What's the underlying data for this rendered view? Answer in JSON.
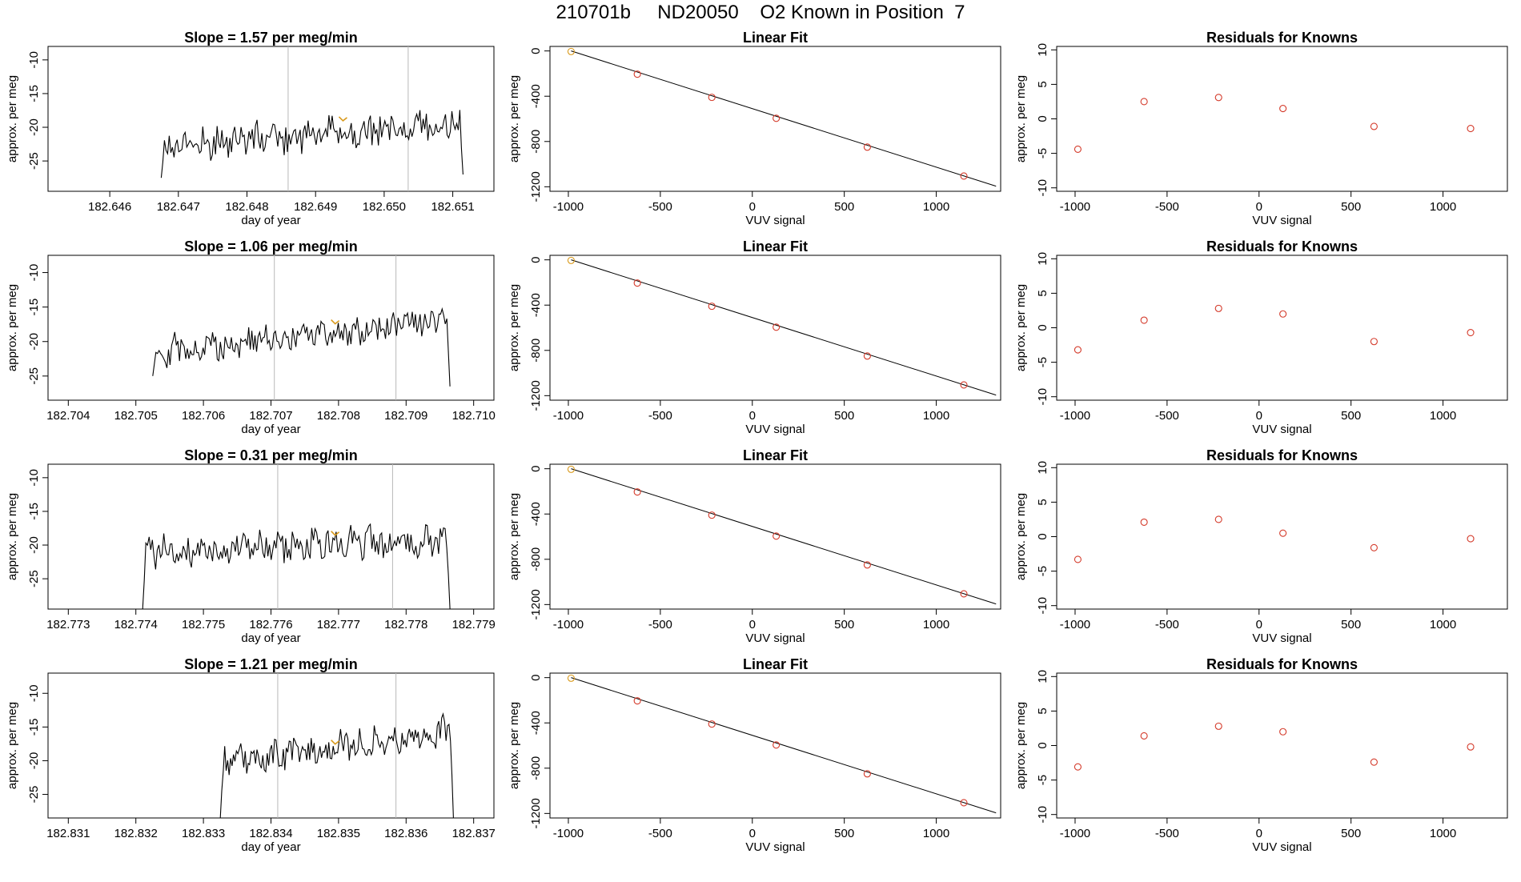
{
  "figure": {
    "title": "210701b     ND20050    O2 Known in Position  7"
  },
  "colors": {
    "trace": "#000000",
    "marker_gold": "#d99a1c",
    "marker_red": "#d43a2a",
    "vline": "#b8b8b8"
  },
  "chart_data": [
    {
      "type": "line",
      "title": "Slope =  1.57  per meg/min",
      "xlabel": "day of year",
      "ylabel": "approx. per meg",
      "xlim": [
        182.6451,
        182.6516
      ],
      "ylim": [
        -29.5,
        -8.0
      ],
      "xticks": [
        182.646,
        182.647,
        182.648,
        182.649,
        182.65,
        182.651
      ],
      "xtick_labels": [
        "182.646",
        "182.647",
        "182.648",
        "182.649",
        "182.650",
        "182.651"
      ],
      "yticks": [
        -25,
        -20,
        -15,
        -10
      ],
      "ytick_labels": [
        "-25",
        "-20",
        "-15",
        "-10"
      ],
      "trace": {
        "x_start": 182.64675,
        "x_end": 182.65115,
        "seed": 17,
        "base_start": -22.8,
        "base_end": -19.2,
        "noise": 2.2,
        "points": 190,
        "y_first": -27.5,
        "y_last": -27.0
      },
      "vlines": [
        182.6486,
        182.65035
      ],
      "marker": {
        "x": 182.6494,
        "y": -18.8
      }
    },
    {
      "type": "scatter",
      "title": "Linear Fit",
      "xlabel": "VUV signal",
      "ylabel": "approx. per meg",
      "xlim": [
        -1100,
        1350
      ],
      "ylim": [
        -1240,
        40
      ],
      "xticks": [
        -1000,
        -500,
        0,
        500,
        1000
      ],
      "xtick_labels": [
        "-1000",
        "-500",
        "0",
        "500",
        "1000"
      ],
      "yticks": [
        -1200,
        -800,
        -400,
        0
      ],
      "ytick_labels": [
        "-1200",
        "-800",
        "-400",
        "0"
      ],
      "points": {
        "x": [
          -985,
          -625,
          -220,
          130,
          625,
          1150
        ],
        "y": [
          -5,
          -205,
          -410,
          -595,
          -850,
          -1105
        ]
      },
      "fit_line": {
        "x": [
          -985,
          1325
        ],
        "y": [
          0,
          -1195
        ]
      }
    },
    {
      "type": "scatter",
      "title": "Residuals for Knowns",
      "xlabel": "VUV signal",
      "ylabel": "approx. per meg",
      "xlim": [
        -1100,
        1350
      ],
      "ylim": [
        -10.5,
        10.5
      ],
      "xticks": [
        -1000,
        -500,
        0,
        500,
        1000
      ],
      "xtick_labels": [
        "-1000",
        "-500",
        "0",
        "500",
        "1000"
      ],
      "yticks": [
        -10,
        -5,
        0,
        5,
        10
      ],
      "ytick_labels": [
        "-10",
        "-5",
        "0",
        "5",
        "10"
      ],
      "points": {
        "x": [
          -985,
          -625,
          -220,
          130,
          625,
          1150
        ],
        "y": [
          -4.4,
          2.5,
          3.1,
          1.5,
          -1.1,
          -1.4
        ]
      }
    },
    {
      "type": "line",
      "title": "Slope =  1.06  per meg/min",
      "xlabel": "day of year",
      "ylabel": "approx. per meg",
      "xlim": [
        182.7037,
        182.7103
      ],
      "ylim": [
        -28.5,
        -7.5
      ],
      "xticks": [
        182.704,
        182.705,
        182.706,
        182.707,
        182.708,
        182.709,
        182.71
      ],
      "xtick_labels": [
        "182.704",
        "182.705",
        "182.706",
        "182.707",
        "182.708",
        "182.709",
        "182.710"
      ],
      "yticks": [
        -25,
        -20,
        -15,
        -10
      ],
      "ytick_labels": [
        "-25",
        "-20",
        "-15",
        "-10"
      ],
      "trace": {
        "x_start": 182.70525,
        "x_end": 182.70965,
        "seed": 29,
        "base_start": -21.5,
        "base_end": -17.0,
        "noise": 2.0,
        "points": 190,
        "y_first": -25.0,
        "y_last": -26.5
      },
      "vlines": [
        182.70705,
        182.70885
      ],
      "marker": {
        "x": 182.70795,
        "y": -17.2
      }
    },
    {
      "type": "scatter",
      "title": "Linear Fit",
      "xlabel": "VUV signal",
      "ylabel": "approx. per meg",
      "xlim": [
        -1100,
        1350
      ],
      "ylim": [
        -1240,
        40
      ],
      "xticks": [
        -1000,
        -500,
        0,
        500,
        1000
      ],
      "xtick_labels": [
        "-1000",
        "-500",
        "0",
        "500",
        "1000"
      ],
      "yticks": [
        -1200,
        -800,
        -400,
        0
      ],
      "ytick_labels": [
        "-1200",
        "-800",
        "-400",
        "0"
      ],
      "points": {
        "x": [
          -985,
          -625,
          -220,
          130,
          625,
          1150
        ],
        "y": [
          -5,
          -205,
          -410,
          -595,
          -850,
          -1105
        ]
      },
      "fit_line": {
        "x": [
          -985,
          1325
        ],
        "y": [
          0,
          -1195
        ]
      }
    },
    {
      "type": "scatter",
      "title": "Residuals for Knowns",
      "xlabel": "VUV signal",
      "ylabel": "approx. per meg",
      "xlim": [
        -1100,
        1350
      ],
      "ylim": [
        -10.5,
        10.5
      ],
      "xticks": [
        -1000,
        -500,
        0,
        500,
        1000
      ],
      "xtick_labels": [
        "-1000",
        "-500",
        "0",
        "500",
        "1000"
      ],
      "yticks": [
        -10,
        -5,
        0,
        5,
        10
      ],
      "ytick_labels": [
        "-10",
        "-5",
        "0",
        "5",
        "10"
      ],
      "points": {
        "x": [
          -985,
          -625,
          -220,
          130,
          625,
          1150
        ],
        "y": [
          -3.2,
          1.1,
          2.8,
          2.0,
          -2.0,
          -0.7
        ]
      }
    },
    {
      "type": "line",
      "title": "Slope =  0.31  per meg/min",
      "xlabel": "day of year",
      "ylabel": "approx. per meg",
      "xlim": [
        182.7727,
        182.7793
      ],
      "ylim": [
        -29.5,
        -8.0
      ],
      "xticks": [
        182.773,
        182.774,
        182.775,
        182.776,
        182.777,
        182.778,
        182.779
      ],
      "xtick_labels": [
        "182.773",
        "182.774",
        "182.775",
        "182.776",
        "182.777",
        "182.778",
        "182.779"
      ],
      "yticks": [
        -25,
        -20,
        -15,
        -10
      ],
      "ytick_labels": [
        "-25",
        "-20",
        "-15",
        "-10"
      ],
      "trace": {
        "x_start": 182.7741,
        "x_end": 182.77865,
        "seed": 41,
        "base_start": -21.0,
        "base_end": -19.2,
        "noise": 2.2,
        "points": 190,
        "y_first": -29.5,
        "y_last": -29.5
      },
      "vlines": [
        182.7761,
        182.7778
      ],
      "marker": {
        "x": 182.77695,
        "y": -18.3
      }
    },
    {
      "type": "scatter",
      "title": "Linear Fit",
      "xlabel": "VUV signal",
      "ylabel": "approx. per meg",
      "xlim": [
        -1100,
        1350
      ],
      "ylim": [
        -1240,
        40
      ],
      "xticks": [
        -1000,
        -500,
        0,
        500,
        1000
      ],
      "xtick_labels": [
        "-1000",
        "-500",
        "0",
        "500",
        "1000"
      ],
      "yticks": [
        -1200,
        -800,
        -400,
        0
      ],
      "ytick_labels": [
        "-1200",
        "-800",
        "-400",
        "0"
      ],
      "points": {
        "x": [
          -985,
          -625,
          -220,
          130,
          625,
          1150
        ],
        "y": [
          -5,
          -205,
          -410,
          -595,
          -850,
          -1105
        ]
      },
      "fit_line": {
        "x": [
          -985,
          1325
        ],
        "y": [
          0,
          -1195
        ]
      }
    },
    {
      "type": "scatter",
      "title": "Residuals for Knowns",
      "xlabel": "VUV signal",
      "ylabel": "approx. per meg",
      "xlim": [
        -1100,
        1350
      ],
      "ylim": [
        -10.5,
        10.5
      ],
      "xticks": [
        -1000,
        -500,
        0,
        500,
        1000
      ],
      "xtick_labels": [
        "-1000",
        "-500",
        "0",
        "500",
        "1000"
      ],
      "yticks": [
        -10,
        -5,
        0,
        5,
        10
      ],
      "ytick_labels": [
        "-10",
        "-5",
        "0",
        "5",
        "10"
      ],
      "points": {
        "x": [
          -985,
          -625,
          -220,
          130,
          625,
          1150
        ],
        "y": [
          -3.3,
          2.1,
          2.5,
          0.5,
          -1.6,
          -0.3
        ]
      }
    },
    {
      "type": "line",
      "title": "Slope =  1.21  per meg/min",
      "xlabel": "day of year",
      "ylabel": "approx. per meg",
      "xlim": [
        182.8307,
        182.8373
      ],
      "ylim": [
        -28.5,
        -7.0
      ],
      "xticks": [
        182.831,
        182.832,
        182.833,
        182.834,
        182.835,
        182.836,
        182.837
      ],
      "xtick_labels": [
        "182.831",
        "182.832",
        "182.833",
        "182.834",
        "182.835",
        "182.836",
        "182.837"
      ],
      "yticks": [
        -25,
        -20,
        -15,
        -10
      ],
      "ytick_labels": [
        "-25",
        "-20",
        "-15",
        "-10"
      ],
      "trace": {
        "x_start": 182.83325,
        "x_end": 182.8367,
        "seed": 53,
        "base_start": -20.5,
        "base_end": -15.5,
        "noise": 2.0,
        "points": 160,
        "y_first": -28.5,
        "y_last": -28.5
      },
      "vlines": [
        182.8341,
        182.83585
      ],
      "marker": {
        "x": 182.83495,
        "y": -17.3
      }
    },
    {
      "type": "scatter",
      "title": "Linear Fit",
      "xlabel": "VUV signal",
      "ylabel": "approx. per meg",
      "xlim": [
        -1100,
        1350
      ],
      "ylim": [
        -1240,
        40
      ],
      "xticks": [
        -1000,
        -500,
        0,
        500,
        1000
      ],
      "xtick_labels": [
        "-1000",
        "-500",
        "0",
        "500",
        "1000"
      ],
      "yticks": [
        -1200,
        -800,
        -400,
        0
      ],
      "ytick_labels": [
        "-1200",
        "-800",
        "-400",
        "0"
      ],
      "points": {
        "x": [
          -985,
          -625,
          -220,
          130,
          625,
          1150
        ],
        "y": [
          -5,
          -205,
          -410,
          -595,
          -850,
          -1105
        ]
      },
      "fit_line": {
        "x": [
          -985,
          1325
        ],
        "y": [
          0,
          -1195
        ]
      }
    },
    {
      "type": "scatter",
      "title": "Residuals for Knowns",
      "xlabel": "VUV signal",
      "ylabel": "approx. per meg",
      "xlim": [
        -1100,
        1350
      ],
      "ylim": [
        -10.5,
        10.5
      ],
      "xticks": [
        -1000,
        -500,
        0,
        500,
        1000
      ],
      "xtick_labels": [
        "-1000",
        "-500",
        "0",
        "500",
        "1000"
      ],
      "yticks": [
        -10,
        -5,
        0,
        5,
        10
      ],
      "ytick_labels": [
        "-10",
        "-5",
        "0",
        "5",
        "10"
      ],
      "points": {
        "x": [
          -985,
          -625,
          -220,
          130,
          625,
          1150
        ],
        "y": [
          -3.1,
          1.4,
          2.8,
          2.0,
          -2.4,
          -0.2
        ]
      }
    }
  ]
}
